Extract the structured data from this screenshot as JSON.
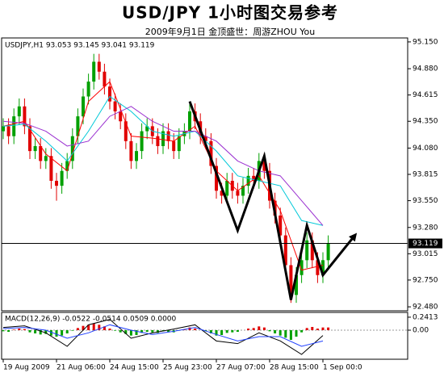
{
  "chart_data": {
    "type": "candlestick",
    "title": "USD/JPY  1小时图交易参考",
    "subtitle": "2009年9月1日  金顶盛世：周游ZHOU You",
    "header": "USDJPY,H1  93.053 93.145 93.041 93.119",
    "categories": [
      "19 Aug 2009",
      null,
      null,
      null,
      null,
      null,
      null,
      null,
      null,
      null,
      "21 Aug 06:00",
      null,
      null,
      null,
      null,
      null,
      null,
      null,
      null,
      null,
      "24 Aug 15:00",
      null,
      null,
      null,
      null,
      null,
      null,
      null,
      null,
      null,
      "25 Aug 23:00",
      null,
      null,
      null,
      null,
      null,
      null,
      null,
      null,
      null,
      "27 Aug 07:00",
      null,
      null,
      null,
      null,
      null,
      null,
      null,
      null,
      null,
      "28 Aug 15:00",
      null,
      null,
      null,
      null,
      null,
      null,
      null,
      null,
      null,
      "1 Sep 00:0",
      null
    ],
    "open": [
      94.25,
      94.3,
      94.2,
      94.4,
      94.5,
      94.3,
      94.05,
      94.1,
      93.95,
      94.0,
      93.75,
      93.7,
      93.85,
      93.95,
      94.2,
      94.4,
      94.6,
      94.75,
      94.95,
      94.85,
      94.7,
      94.55,
      94.45,
      94.35,
      94.15,
      93.95,
      94.05,
      94.25,
      94.3,
      94.2,
      94.1,
      94.25,
      94.15,
      94.05,
      94.2,
      94.25,
      94.45,
      94.35,
      94.2,
      94.15,
      93.9,
      93.65,
      93.6,
      93.75,
      93.65,
      93.6,
      93.7,
      93.8,
      93.75,
      93.95,
      93.85,
      93.55,
      93.4,
      93.2,
      92.9,
      92.6,
      92.8,
      92.95,
      93.15,
      92.95,
      92.8,
      92.95
    ],
    "high": [
      94.38,
      94.38,
      94.48,
      94.58,
      94.58,
      94.38,
      94.18,
      94.18,
      94.08,
      94.08,
      93.83,
      93.93,
      94.03,
      94.28,
      94.48,
      94.68,
      94.83,
      95.03,
      95.03,
      94.93,
      94.78,
      94.63,
      94.53,
      94.43,
      94.23,
      94.13,
      94.33,
      94.38,
      94.38,
      94.28,
      94.33,
      94.33,
      94.23,
      94.28,
      94.33,
      94.53,
      94.53,
      94.43,
      94.28,
      94.23,
      93.98,
      93.73,
      93.83,
      93.83,
      93.73,
      93.78,
      93.88,
      93.88,
      94.03,
      94.03,
      93.93,
      93.63,
      93.48,
      93.28,
      92.98,
      92.88,
      93.03,
      93.23,
      93.23,
      93.03,
      93.03,
      93.2
    ],
    "low": [
      94.17,
      94.12,
      94.12,
      94.32,
      94.22,
      93.97,
      93.97,
      93.87,
      93.87,
      93.67,
      93.55,
      93.62,
      93.77,
      93.87,
      94.12,
      94.32,
      94.52,
      94.67,
      94.77,
      94.62,
      94.47,
      94.37,
      94.27,
      94.07,
      93.87,
      93.87,
      93.97,
      94.17,
      94.12,
      94.02,
      94.02,
      94.07,
      93.97,
      93.97,
      94.12,
      94.17,
      94.27,
      94.12,
      94.07,
      93.82,
      93.57,
      93.52,
      93.52,
      93.57,
      93.52,
      93.52,
      93.62,
      93.67,
      93.67,
      93.77,
      93.47,
      93.32,
      93.12,
      92.82,
      92.52,
      92.52,
      92.72,
      92.87,
      92.87,
      92.72,
      92.72,
      92.87
    ],
    "close": [
      94.3,
      94.2,
      94.4,
      94.5,
      94.3,
      94.05,
      94.1,
      93.95,
      94.0,
      93.75,
      93.7,
      93.85,
      93.95,
      94.2,
      94.4,
      94.6,
      94.75,
      94.95,
      94.85,
      94.7,
      94.55,
      94.45,
      94.35,
      94.15,
      93.95,
      94.05,
      94.25,
      94.3,
      94.2,
      94.1,
      94.25,
      94.15,
      94.05,
      94.2,
      94.25,
      94.45,
      94.35,
      94.2,
      94.15,
      93.9,
      93.65,
      93.6,
      93.75,
      93.65,
      93.6,
      93.7,
      93.8,
      93.75,
      93.95,
      93.85,
      93.55,
      93.4,
      93.2,
      92.9,
      92.6,
      92.8,
      92.95,
      93.15,
      92.95,
      92.8,
      92.95,
      93.12
    ],
    "up_color": "#00a000",
    "down_color": "#e00000",
    "x": [
      0,
      4,
      8,
      12,
      16,
      20,
      24,
      28,
      32,
      36,
      40,
      44,
      48,
      52,
      56,
      60
    ],
    "series": [
      {
        "color": "#ff0000",
        "values": [
          94.3,
          94.35,
          94.02,
          93.85,
          94.55,
          94.75,
          94.2,
          94.18,
          94.15,
          94.3,
          93.85,
          93.65,
          93.8,
          93.45,
          92.85,
          92.9
        ]
      },
      {
        "color": "#00c8d8",
        "values": [
          94.3,
          94.32,
          94.15,
          93.95,
          94.25,
          94.6,
          94.45,
          94.25,
          94.2,
          94.25,
          94.05,
          93.8,
          93.75,
          93.7,
          93.35,
          93.3
        ]
      },
      {
        "color": "#9a30d0",
        "values": [
          94.35,
          94.33,
          94.25,
          94.1,
          94.15,
          94.4,
          94.5,
          94.35,
          94.25,
          94.25,
          94.15,
          93.95,
          93.85,
          93.8,
          93.55,
          93.3
        ]
      }
    ],
    "annotation": {
      "x": [
        35,
        44,
        49,
        54,
        57,
        60,
        66
      ],
      "y": [
        94.55,
        93.25,
        94.0,
        92.55,
        93.3,
        92.8,
        93.2
      ]
    },
    "ylim": [
      92.44,
      95.19
    ],
    "yticks": [
      {
        "value": 95.15,
        "label": "95.150"
      },
      {
        "value": 94.88,
        "label": "94.880"
      },
      94.615,
      {
        "value": 94.35,
        "label": "94.350"
      },
      {
        "value": 94.08,
        "label": "94.080"
      },
      93.815,
      {
        "value": 93.55,
        "label": "93.550"
      },
      {
        "value": 93.28,
        "label": "93.280"
      },
      93.015,
      {
        "value": 92.75,
        "label": "92.750"
      },
      {
        "value": 92.48,
        "label": "92.480"
      }
    ],
    "last_price": 93.119,
    "macd": {
      "label": "MACD(12,26,9) -0.0522 -0.0514 0.0509 0.0000",
      "histogram": [
        -0.02,
        -0.03,
        0.01,
        0.03,
        0.02,
        -0.04,
        -0.06,
        -0.08,
        -0.07,
        -0.1,
        -0.12,
        -0.1,
        -0.06,
        -0.01,
        0.04,
        0.08,
        0.1,
        0.12,
        0.1,
        0.07,
        0.03,
        -0.01,
        -0.04,
        -0.07,
        -0.1,
        -0.09,
        -0.05,
        -0.03,
        -0.04,
        -0.05,
        -0.02,
        -0.03,
        -0.04,
        -0.01,
        0.01,
        0.05,
        0.03,
        0.0,
        -0.02,
        -0.06,
        -0.1,
        -0.09,
        -0.05,
        -0.04,
        -0.03,
        0.0,
        0.03,
        0.04,
        0.07,
        0.05,
        -0.02,
        -0.06,
        -0.1,
        -0.14,
        -0.18,
        -0.12,
        -0.04,
        0.04,
        0.06,
        0.03,
        0.05,
        0.05
      ],
      "pos_color": "#e00000",
      "neg_color": "#00a000",
      "x": [
        0,
        4,
        8,
        12,
        16,
        20,
        24,
        28,
        32,
        36,
        40,
        44,
        48,
        52,
        56,
        60
      ],
      "series": [
        {
          "color": "#000000",
          "values": [
            0.05,
            0.08,
            -0.05,
            -0.3,
            0.1,
            0.2,
            -0.15,
            -0.05,
            0.02,
            0.1,
            -0.2,
            -0.25,
            -0.05,
            -0.2,
            -0.45,
            -0.1
          ]
        },
        {
          "color": "#2040ff",
          "values": [
            0.03,
            0.05,
            0.0,
            -0.15,
            -0.05,
            0.1,
            0.0,
            -0.08,
            -0.02,
            0.05,
            -0.08,
            -0.2,
            -0.12,
            -0.12,
            -0.3,
            -0.2
          ]
        }
      ],
      "ylim": [
        -0.54,
        0.33
      ],
      "yticks": [
        0.2413,
        {
          "value": 0,
          "label": "0.00"
        }
      ]
    }
  }
}
